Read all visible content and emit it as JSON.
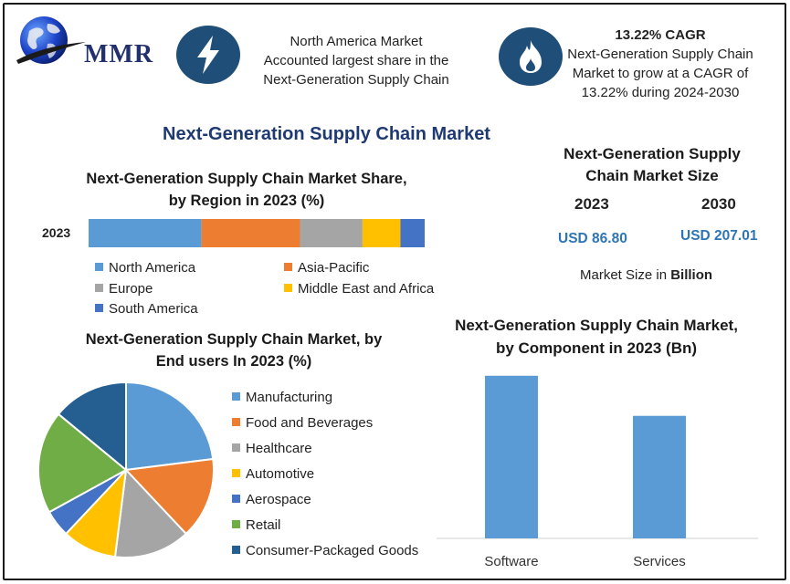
{
  "brand": {
    "logo_text": "MMR"
  },
  "header": {
    "highlight_1": {
      "icon": "lightning-icon",
      "lines": [
        "North America Market",
        "Accounted largest share in the",
        "Next-Generation Supply Chain"
      ]
    },
    "highlight_2": {
      "icon": "flame-icon",
      "title": "13.22% CAGR",
      "lines": [
        "Next-Generation Supply Chain",
        "Market to grow at a CAGR of",
        "13.22% during 2024-2030"
      ]
    }
  },
  "page_title": "Next-Generation Supply Chain Market",
  "market_size": {
    "title_lines": [
      "Next-Generation Supply",
      "Chain Market Size"
    ],
    "year_1": "2023",
    "value_1": "USD 86.80",
    "year_2": "2030",
    "value_2": "USD 207.01",
    "note_prefix": "Market Size in",
    "note_unit": "Billion"
  },
  "colors": {
    "North America": "#5b9bd5",
    "Asia-Pacific": "#ed7d31",
    "Europe": "#a5a5a5",
    "Middle East and Africa": "#ffc000",
    "South America": "#4472c4",
    "Manufacturing": "#5b9bd5",
    "Food and Beverages": "#ed7d31",
    "Healthcare": "#a5a5a5",
    "Automotive": "#ffc000",
    "Aerospace": "#4472c4",
    "Retail": "#70ad47",
    "Consumer-Packaged Goods": "#255e91",
    "bar": "#5b9bd5"
  },
  "chart_data": [
    {
      "type": "bar",
      "orientation": "horizontal-stacked",
      "title": "Next-Generation Supply Chain Market Share, by Region in 2023 (%)",
      "categories": [
        "2023"
      ],
      "series": [
        {
          "name": "North America",
          "values": [
            33.6
          ]
        },
        {
          "name": "Asia-Pacific",
          "values": [
            29.3
          ]
        },
        {
          "name": "Europe",
          "values": [
            18.6
          ]
        },
        {
          "name": "Middle East and Africa",
          "values": [
            11.3
          ]
        },
        {
          "name": "South America",
          "values": [
            7.2
          ]
        }
      ],
      "xlim": [
        0,
        100
      ],
      "legend": "bottom"
    },
    {
      "type": "pie",
      "title": "Next-Generation Supply Chain Market, by End users In 2023 (%)",
      "labels": [
        "Manufacturing",
        "Food and Beverages",
        "Healthcare",
        "Automotive",
        "Aerospace",
        "Retail",
        "Consumer-Packaged Goods"
      ],
      "values": [
        23,
        15,
        14,
        10,
        5,
        19,
        14
      ],
      "legend": "right"
    },
    {
      "type": "bar",
      "title": "Next-Generation Supply Chain Market, by Component in 2023 (Bn)",
      "categories": [
        "Software",
        "Services"
      ],
      "values": [
        49.5,
        37.3
      ],
      "ylim": [
        0,
        55
      ],
      "grid": false
    }
  ]
}
